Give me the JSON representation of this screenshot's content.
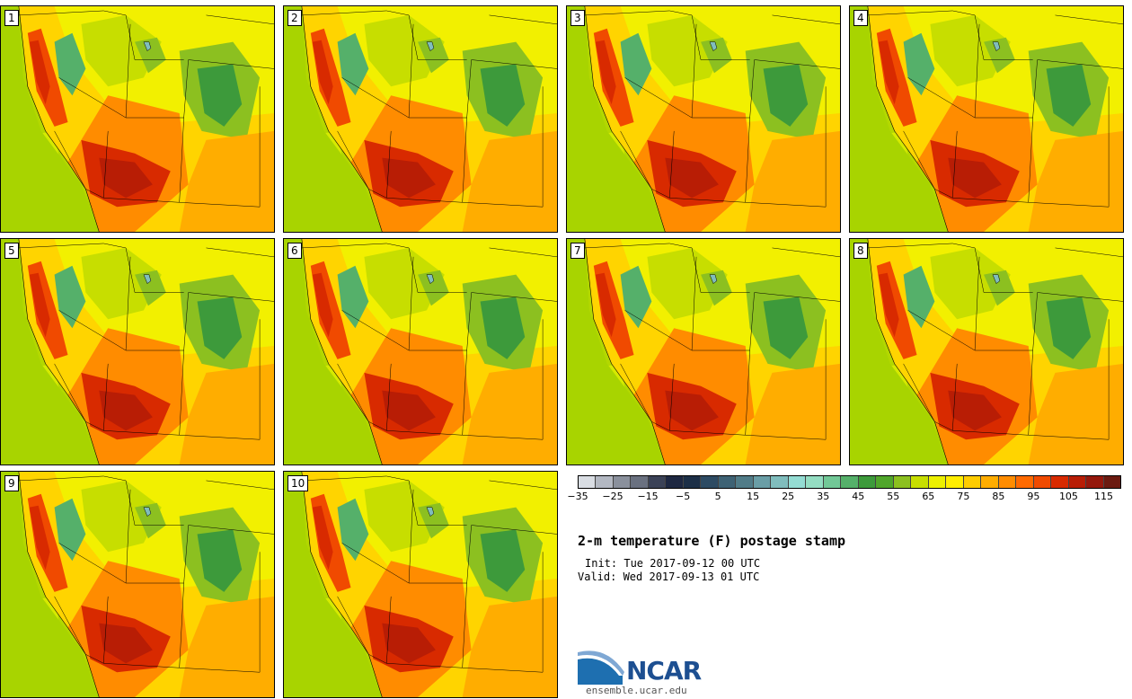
{
  "panels": [
    {
      "label": "1"
    },
    {
      "label": "2"
    },
    {
      "label": "3"
    },
    {
      "label": "4"
    },
    {
      "label": "5"
    },
    {
      "label": "6"
    },
    {
      "label": "7"
    },
    {
      "label": "8"
    },
    {
      "label": "9"
    },
    {
      "label": "10"
    }
  ],
  "colorbar": {
    "colors": [
      "#d9dde3",
      "#b3b8c2",
      "#8a909c",
      "#6a7180",
      "#3b4257",
      "#1e2842",
      "#1c2f47",
      "#2d4b63",
      "#3e6274",
      "#517c88",
      "#6a9ea6",
      "#80bdbd",
      "#94dcd3",
      "#94ddc2",
      "#72c897",
      "#55b06a",
      "#3d9a3b",
      "#50a62b",
      "#8cc020",
      "#c7de00",
      "#ecf000",
      "#ffee00",
      "#ffcc00",
      "#ffad00",
      "#ff8c00",
      "#ff6a00",
      "#f04a00",
      "#d82a00",
      "#b81d05",
      "#95180c",
      "#6b1a10"
    ],
    "tick_labels": [
      "−35",
      "−25",
      "−15",
      "−5",
      "5",
      "15",
      "25",
      "35",
      "45",
      "55",
      "65",
      "75",
      "85",
      "95",
      "105",
      "115"
    ]
  },
  "title": "2-m temperature (F) postage stamp",
  "init": "Init: Tue 2017-09-12 00 UTC",
  "valid": "Valid: Wed 2017-09-13 01 UTC",
  "logo": {
    "text": "NCAR",
    "url": "ensemble.ucar.edu"
  }
}
